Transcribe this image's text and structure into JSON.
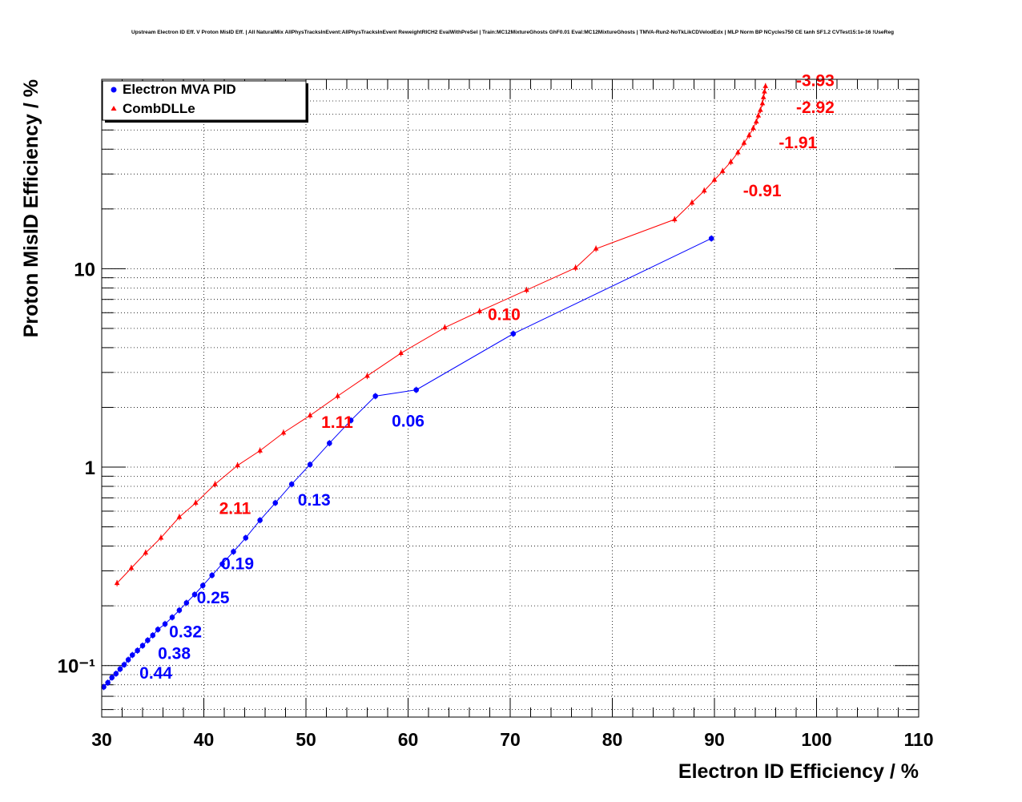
{
  "chart_data": {
    "type": "scatter",
    "title": "Upstream Electron ID Eff. V Proton MisID Eff. | All NaturalMix AllPhysTracksInEvent:AllPhysTracksInEvent ReweightRICH2 EvalWithPreSel | Train:MC12MixtureGhosts GhF0.01 Eval:MC12MixtureGhosts | TMVA-Run2-NoTkLikCDVelodEdx | MLP Norm BP NCycles750 CE tanh SF1.2 CVTest15:1e-16 !UseReg",
    "xlabel": "Electron ID Efficiency / %",
    "ylabel": "Proton MisID Efficiency / %",
    "xlim": [
      30,
      110
    ],
    "ylim": [
      0.055,
      90
    ],
    "yscale": "log",
    "grid": true,
    "legend_position": "top-left",
    "x_ticks": [
      "30",
      "40",
      "50",
      "60",
      "70",
      "80",
      "90",
      "100",
      "110"
    ],
    "y_ticks": [
      "10⁻¹",
      "1",
      "10"
    ],
    "series": [
      {
        "name": "Electron MVA PID",
        "color": "#0000ff",
        "marker": "circle",
        "points": [
          [
            30.2,
            0.078
          ],
          [
            30.6,
            0.082
          ],
          [
            31.0,
            0.087
          ],
          [
            31.4,
            0.091
          ],
          [
            31.8,
            0.096
          ],
          [
            32.2,
            0.101
          ],
          [
            32.6,
            0.107
          ],
          [
            33.0,
            0.113
          ],
          [
            33.5,
            0.119
          ],
          [
            34.0,
            0.126
          ],
          [
            34.5,
            0.134
          ],
          [
            35.0,
            0.142
          ],
          [
            35.5,
            0.152
          ],
          [
            36.2,
            0.162
          ],
          [
            36.9,
            0.175
          ],
          [
            37.6,
            0.19
          ],
          [
            38.3,
            0.207
          ],
          [
            39.1,
            0.228
          ],
          [
            39.9,
            0.253
          ],
          [
            40.8,
            0.285
          ],
          [
            41.8,
            0.325
          ],
          [
            42.9,
            0.375
          ],
          [
            44.1,
            0.44
          ],
          [
            45.5,
            0.54
          ],
          [
            47.0,
            0.66
          ],
          [
            48.6,
            0.82
          ],
          [
            50.4,
            1.03
          ],
          [
            52.3,
            1.32
          ],
          [
            54.4,
            1.72
          ],
          [
            56.8,
            2.28
          ],
          [
            60.8,
            2.45
          ],
          [
            70.3,
            4.7
          ],
          [
            89.7,
            14.2
          ]
        ],
        "annotations": [
          {
            "text": "0.44",
            "x": 33.7,
            "y": 0.086
          },
          {
            "text": "0.38",
            "x": 35.5,
            "y": 0.108
          },
          {
            "text": "0.32",
            "x": 36.6,
            "y": 0.139
          },
          {
            "text": "0.25",
            "x": 39.3,
            "y": 0.206
          },
          {
            "text": "0.19",
            "x": 41.7,
            "y": 0.306
          },
          {
            "text": "0.13",
            "x": 49.2,
            "y": 0.64
          },
          {
            "text": "0.06",
            "x": 58.4,
            "y": 1.6
          }
        ]
      },
      {
        "name": "CombDLLe",
        "color": "#ff0000",
        "marker": "triangle",
        "points": [
          [
            31.5,
            0.26
          ],
          [
            32.9,
            0.31
          ],
          [
            34.3,
            0.37
          ],
          [
            35.8,
            0.44
          ],
          [
            37.6,
            0.56
          ],
          [
            39.2,
            0.66
          ],
          [
            41.1,
            0.82
          ],
          [
            43.3,
            1.02
          ],
          [
            45.5,
            1.21
          ],
          [
            47.8,
            1.49
          ],
          [
            50.4,
            1.82
          ],
          [
            53.1,
            2.28
          ],
          [
            56.0,
            2.88
          ],
          [
            59.3,
            3.75
          ],
          [
            63.6,
            5.05
          ],
          [
            67.0,
            6.1
          ],
          [
            71.6,
            7.8
          ],
          [
            76.4,
            10.1
          ],
          [
            78.4,
            12.6
          ],
          [
            86.1,
            17.7
          ],
          [
            87.8,
            21.5
          ],
          [
            89.0,
            24.7
          ],
          [
            90.0,
            28.0
          ],
          [
            90.8,
            31.0
          ],
          [
            91.6,
            34.5
          ],
          [
            92.3,
            38.5
          ],
          [
            92.9,
            43.0
          ],
          [
            93.4,
            47.0
          ],
          [
            93.8,
            51.0
          ],
          [
            94.1,
            55.0
          ],
          [
            94.3,
            59.0
          ],
          [
            94.5,
            63.0
          ],
          [
            94.7,
            68.0
          ],
          [
            94.8,
            73.0
          ],
          [
            94.9,
            78.0
          ],
          [
            95.0,
            83.0
          ]
        ],
        "annotations": [
          {
            "text": "2.11",
            "x": 41.5,
            "y": 0.58
          },
          {
            "text": "1.11",
            "x": 51.5,
            "y": 1.58
          },
          {
            "text": "0.10",
            "x": 67.8,
            "y": 5.5
          },
          {
            "text": "-0.91",
            "x": 92.8,
            "y": 23.2
          },
          {
            "text": "-1.91",
            "x": 96.3,
            "y": 40.5
          },
          {
            "text": "-2.92",
            "x": 98.0,
            "y": 61.0
          },
          {
            "text": "-3.93",
            "x": 98.0,
            "y": 83.0
          }
        ]
      }
    ]
  }
}
